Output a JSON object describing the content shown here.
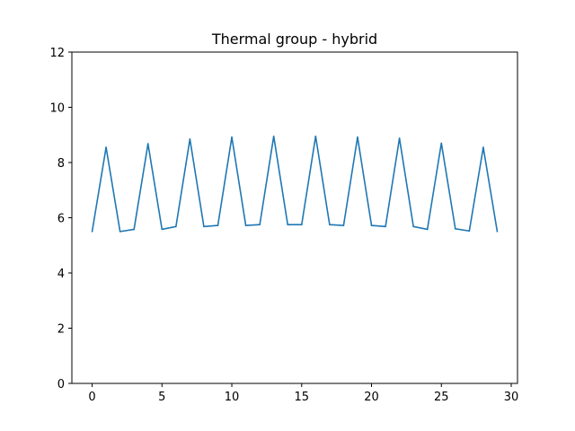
{
  "chart_data": {
    "type": "line",
    "title": "Thermal group - hybrid",
    "xlabel": "",
    "ylabel": "",
    "xlim": [
      -1.45,
      30.45
    ],
    "ylim": [
      0,
      12
    ],
    "xticks": [
      0,
      5,
      10,
      15,
      20,
      25,
      30
    ],
    "yticks": [
      0,
      2,
      4,
      6,
      8,
      10,
      12
    ],
    "grid": false,
    "legend": "none",
    "series": [
      {
        "color": "#1f77b4",
        "x": [
          0,
          1,
          2,
          3,
          4,
          5,
          6,
          7,
          8,
          9,
          10,
          11,
          12,
          13,
          14,
          15,
          16,
          17,
          18,
          19,
          20,
          21,
          22,
          23,
          24,
          25,
          26,
          27,
          28,
          29
        ],
        "values": [
          5.5,
          8.55,
          5.5,
          5.58,
          8.68,
          5.58,
          5.68,
          8.85,
          5.68,
          5.72,
          8.92,
          5.72,
          5.75,
          8.95,
          5.75,
          5.75,
          8.95,
          5.75,
          5.72,
          8.92,
          5.72,
          5.68,
          8.88,
          5.68,
          5.58,
          8.7,
          5.6,
          5.52,
          8.55,
          5.5
        ]
      }
    ]
  }
}
